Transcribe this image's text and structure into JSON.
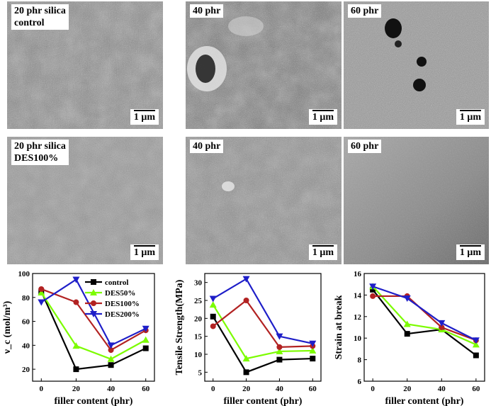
{
  "panels": [
    {
      "label": "20 phr silica\ncontrol",
      "scale": "1 μm"
    },
    {
      "label": "40 phr",
      "scale": "1 μm"
    },
    {
      "label": "60 phr",
      "scale": "1 μm"
    },
    {
      "label": "20 phr silica\nDES100%",
      "scale": "1 μm"
    },
    {
      "label": "40 phr",
      "scale": "1 μm"
    },
    {
      "label": "60 phr",
      "scale": "1 μm"
    }
  ],
  "colors": {
    "control": "#000000",
    "DES50%": "#7CFC00",
    "DES100%": "#B22222",
    "DES200%": "#1E1EC8"
  },
  "chart_data": [
    {
      "type": "line",
      "xlabel": "filler content (phr)",
      "ylabel": "ν_c (mol/m³)",
      "x": [
        0,
        20,
        40,
        60
      ],
      "xticks": [
        "0",
        "20",
        "40",
        "60"
      ],
      "ylim": [
        10,
        100
      ],
      "yticks": [
        "20",
        "40",
        "60",
        "80",
        "100"
      ],
      "legend": "top-right",
      "series": [
        {
          "name": "control",
          "marker": "square",
          "values": [
            85,
            20,
            23.5,
            37.5
          ]
        },
        {
          "name": "DES50%",
          "marker": "triangle-up",
          "values": [
            84,
            39.5,
            28.5,
            44.5
          ]
        },
        {
          "name": "DES100%",
          "marker": "circle",
          "values": [
            87,
            76,
            36,
            52.5
          ]
        },
        {
          "name": "DES200%",
          "marker": "triangle-down",
          "values": [
            76,
            95,
            40,
            54
          ]
        }
      ]
    },
    {
      "type": "line",
      "xlabel": "filler content (phr)",
      "ylabel": "Tensile Strength(MPa)",
      "x": [
        0,
        20,
        40,
        60
      ],
      "xticks": [
        "0",
        "20",
        "40",
        "60"
      ],
      "ylim": [
        2.5,
        32.5
      ],
      "yticks": [
        "5",
        "10",
        "15",
        "20",
        "25",
        "30"
      ],
      "series": [
        {
          "name": "control",
          "marker": "square",
          "values": [
            20.5,
            5,
            8.5,
            8.8
          ]
        },
        {
          "name": "DES50%",
          "marker": "triangle-up",
          "values": [
            23.8,
            8.8,
            10.8,
            11
          ]
        },
        {
          "name": "DES100%",
          "marker": "circle",
          "values": [
            17.8,
            25,
            12,
            12.3
          ]
        },
        {
          "name": "DES200%",
          "marker": "triangle-down",
          "values": [
            25.5,
            31,
            15,
            13
          ]
        }
      ]
    },
    {
      "type": "line",
      "xlabel": "filler content (phr)",
      "ylabel": "Strain at break",
      "x": [
        0,
        20,
        40,
        60
      ],
      "xticks": [
        "0",
        "20",
        "40",
        "60"
      ],
      "ylim": [
        6,
        16
      ],
      "yticks": [
        "6",
        "8",
        "10",
        "12",
        "14",
        "16"
      ],
      "series": [
        {
          "name": "control",
          "marker": "square",
          "values": [
            14.5,
            10.4,
            10.8,
            8.4
          ]
        },
        {
          "name": "DES50%",
          "marker": "triangle-up",
          "values": [
            14.8,
            11.3,
            10.8,
            9.4
          ]
        },
        {
          "name": "DES100%",
          "marker": "circle",
          "values": [
            13.9,
            13.9,
            11,
            9.8
          ]
        },
        {
          "name": "DES200%",
          "marker": "triangle-down",
          "values": [
            14.8,
            13.7,
            11.4,
            9.8
          ]
        }
      ]
    }
  ]
}
